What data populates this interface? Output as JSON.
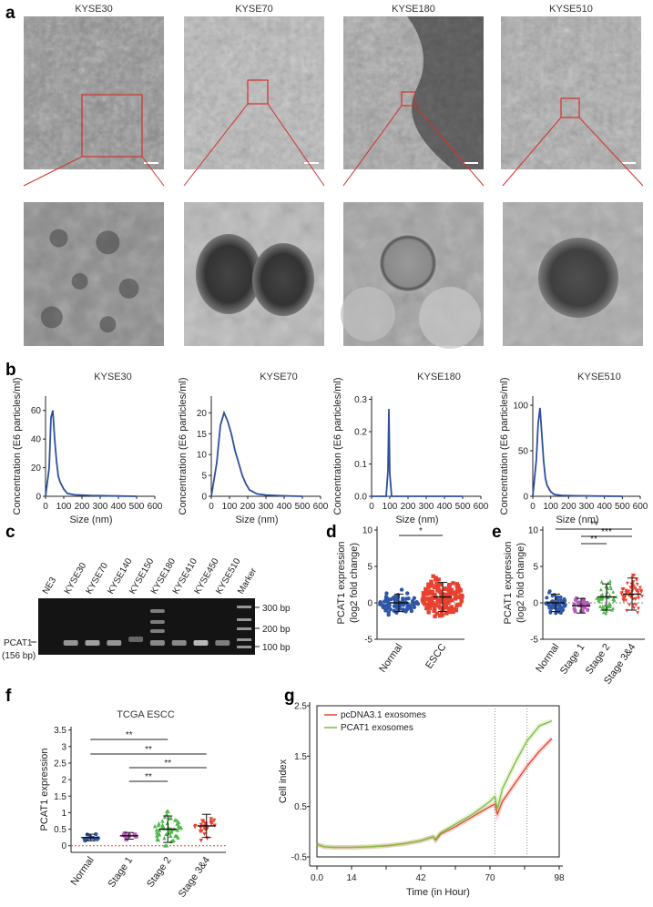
{
  "panels": {
    "a": {
      "label": "a",
      "samples": [
        "KYSE30",
        "KYSE70",
        "KYSE180",
        "KYSE510"
      ]
    },
    "b": {
      "label": "b",
      "ylabel": "Concentration (E6 particles/ml)",
      "xlabel": "Size (nm)",
      "plots": [
        {
          "title": "KYSE30",
          "yticks": [
            0,
            20,
            40,
            60
          ],
          "ymax": 70
        },
        {
          "title": "KYSE70",
          "yticks": [
            0,
            5,
            10,
            15,
            20
          ],
          "ymax": 24
        },
        {
          "title": "KYSE180",
          "yticks": [
            0.0,
            0.1,
            0.2,
            0.3
          ],
          "ymax": 0.31
        },
        {
          "title": "KYSE510",
          "yticks": [
            0,
            50,
            100
          ],
          "ymax": 110
        }
      ],
      "xticks": [
        0,
        100,
        200,
        300,
        400,
        500,
        600
      ]
    },
    "c": {
      "label": "c",
      "lanes": [
        "NE3",
        "KYSE30",
        "KYSE70",
        "KYSE140",
        "KYSE150",
        "KYSE180",
        "KYSE410",
        "KYSE450",
        "KYSE510",
        "Marker"
      ],
      "markers": [
        "300 bp",
        "200 bp",
        "100 bp"
      ],
      "band_label": "PCAT1",
      "band_size": "(156 bp)"
    },
    "d": {
      "label": "d",
      "ylabel_1": "PCAT1 expression",
      "ylabel_2": "(log2 fold change)",
      "groups": [
        "Normal",
        "ESCC"
      ],
      "yticks": [
        -5,
        0,
        5,
        10
      ],
      "sig": [
        "*"
      ]
    },
    "e": {
      "label": "e",
      "ylabel_1": "PCAT1 expression",
      "ylabel_2": "(log2 fold change)",
      "groups": [
        "Normal",
        "Stage 1",
        "Stage 2",
        "Stage 3&4"
      ],
      "yticks": [
        -5,
        0,
        5,
        10
      ],
      "sig": [
        "**",
        "***",
        "**"
      ]
    },
    "f": {
      "label": "f",
      "title": "TCGA ESCC",
      "ylabel": "PCAT1 expression",
      "groups": [
        "Normal",
        "Stage 1",
        "Stage 2",
        "Stage 3&4"
      ],
      "yticks": [
        0,
        0.5,
        1,
        1.5,
        2,
        2.5,
        3,
        3.5
      ],
      "sig": [
        "**",
        "**",
        "**",
        "**"
      ]
    },
    "g": {
      "label": "g",
      "ylabel": "Cell index",
      "xlabel": "Time (in Hour)",
      "yticks": [
        -0.5,
        0.5,
        1.5,
        2.5
      ],
      "xticks": [
        0.0,
        14,
        28,
        42,
        56,
        70,
        84,
        98
      ],
      "xticks_labelled": [
        "0.0",
        "14",
        "42",
        "70",
        "98"
      ]
    }
  },
  "chart_data": [
    {
      "type": "line",
      "title": "KYSE30",
      "xlabel": "Size (nm)",
      "ylabel": "Concentration (E6 particles/ml)",
      "xlim": [
        0,
        600
      ],
      "ylim": [
        0,
        70
      ],
      "series": [
        {
          "x": [
            0,
            20,
            30,
            40,
            50,
            60,
            70,
            80,
            100,
            120,
            160,
            250,
            400,
            500
          ],
          "y": [
            0,
            20,
            55,
            60,
            40,
            25,
            14,
            10,
            5,
            2,
            1,
            0.5,
            0.2,
            0
          ]
        }
      ]
    },
    {
      "type": "line",
      "title": "KYSE70",
      "xlabel": "Size (nm)",
      "ylabel": "Concentration (E6 particles/ml)",
      "xlim": [
        0,
        600
      ],
      "ylim": [
        0,
        24
      ],
      "series": [
        {
          "x": [
            0,
            30,
            50,
            70,
            90,
            110,
            130,
            150,
            170,
            190,
            210,
            250,
            300,
            400,
            500
          ],
          "y": [
            0,
            8,
            17,
            20,
            18,
            15,
            11,
            8,
            5,
            3,
            1.5,
            0.6,
            0.3,
            0.1,
            0
          ]
        }
      ]
    },
    {
      "type": "line",
      "title": "KYSE180",
      "xlabel": "Size (nm)",
      "ylabel": "Concentration (E6 particles/ml)",
      "xlim": [
        0,
        600
      ],
      "ylim": [
        0,
        0.31
      ],
      "series": [
        {
          "x": [
            0,
            80,
            90,
            95,
            100,
            110,
            200,
            400,
            500
          ],
          "y": [
            0,
            0,
            0.08,
            0.27,
            0.07,
            0,
            0,
            0,
            0
          ]
        }
      ]
    },
    {
      "type": "line",
      "title": "KYSE510",
      "xlabel": "Size (nm)",
      "ylabel": "Concentration (E6 particles/ml)",
      "xlim": [
        0,
        600
      ],
      "ylim": [
        0,
        110
      ],
      "series": [
        {
          "x": [
            0,
            20,
            30,
            40,
            50,
            60,
            70,
            80,
            100,
            120,
            160,
            250,
            400,
            500
          ],
          "y": [
            0,
            40,
            80,
            97,
            70,
            40,
            20,
            12,
            5,
            2,
            1,
            0.5,
            0.2,
            0
          ]
        }
      ]
    },
    {
      "type": "line",
      "title": "",
      "xlabel": "Time (in Hour)",
      "ylabel": "Cell index",
      "xlim": [
        0,
        98
      ],
      "ylim": [
        -0.5,
        2.5
      ],
      "series": [
        {
          "name": "pcDNA3.1 exosomes",
          "color": "#e8412f",
          "x": [
            0,
            3,
            7,
            14,
            21,
            28,
            35,
            42,
            47,
            48,
            50,
            56,
            63,
            70,
            72,
            73,
            75,
            80,
            85,
            90,
            95
          ],
          "y": [
            -0.25,
            -0.3,
            -0.31,
            -0.31,
            -0.3,
            -0.28,
            -0.24,
            -0.18,
            -0.1,
            -0.17,
            -0.05,
            0.1,
            0.3,
            0.5,
            0.55,
            0.35,
            0.6,
            0.95,
            1.3,
            1.6,
            1.85
          ]
        },
        {
          "name": "PCAT1 exosomes",
          "color": "#7bbf3a",
          "x": [
            0,
            3,
            7,
            14,
            21,
            28,
            35,
            42,
            47,
            48,
            50,
            56,
            63,
            70,
            72,
            73,
            75,
            80,
            85,
            90,
            95
          ],
          "y": [
            -0.25,
            -0.3,
            -0.31,
            -0.31,
            -0.3,
            -0.28,
            -0.24,
            -0.18,
            -0.1,
            -0.15,
            -0.02,
            0.15,
            0.35,
            0.6,
            0.7,
            0.45,
            0.85,
            1.35,
            1.8,
            2.1,
            2.2
          ]
        }
      ]
    }
  ]
}
